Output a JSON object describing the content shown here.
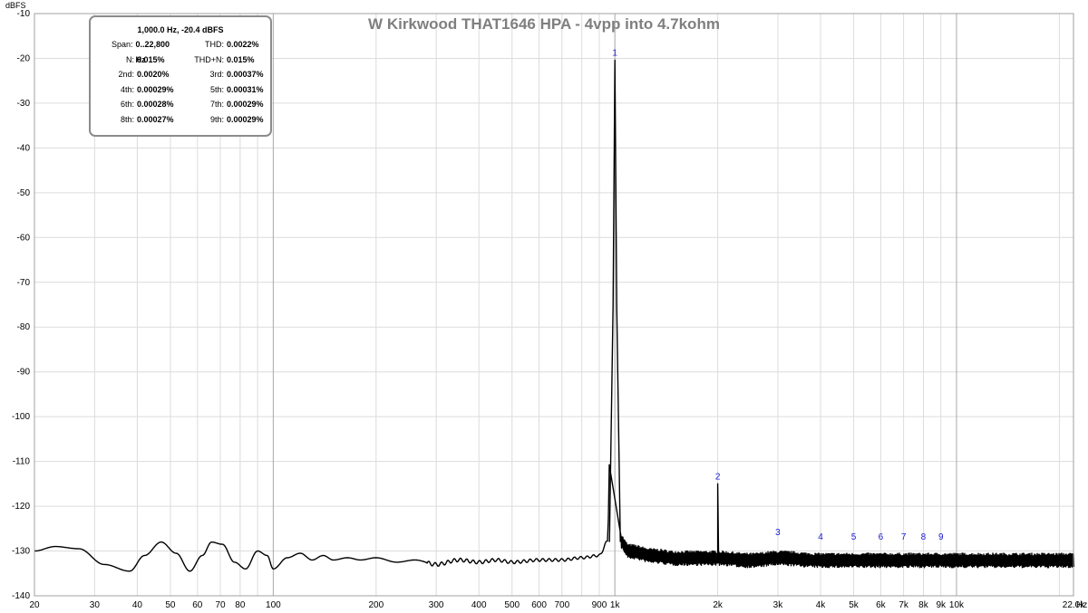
{
  "chart_data": {
    "type": "line",
    "title": "W Kirkwood THAT1646 HPA - 4vpp into 4.7kohm",
    "ylabel": "dBFS",
    "x_unit_label": "Hz",
    "x_scale": "log",
    "xlim": [
      20,
      22000
    ],
    "ylim": [
      -140,
      -10
    ],
    "grid": true,
    "x_ticks": [
      {
        "value": 20,
        "label": "20"
      },
      {
        "value": 30,
        "label": "30"
      },
      {
        "value": 40,
        "label": "40"
      },
      {
        "value": 50,
        "label": "50"
      },
      {
        "value": 60,
        "label": "60"
      },
      {
        "value": 70,
        "label": "70"
      },
      {
        "value": 80,
        "label": "80"
      },
      {
        "value": 100,
        "label": "100"
      },
      {
        "value": 200,
        "label": "200"
      },
      {
        "value": 300,
        "label": "300"
      },
      {
        "value": 400,
        "label": "400"
      },
      {
        "value": 500,
        "label": "500"
      },
      {
        "value": 600,
        "label": "600"
      },
      {
        "value": 700,
        "label": "700"
      },
      {
        "value": 900,
        "label": "900"
      },
      {
        "value": 1000,
        "label": "1k"
      },
      {
        "value": 2000,
        "label": "2k"
      },
      {
        "value": 3000,
        "label": "3k"
      },
      {
        "value": 4000,
        "label": "4k"
      },
      {
        "value": 5000,
        "label": "5k"
      },
      {
        "value": 6000,
        "label": "6k"
      },
      {
        "value": 7000,
        "label": "7k"
      },
      {
        "value": 8000,
        "label": "8k"
      },
      {
        "value": 9000,
        "label": "9k"
      },
      {
        "value": 10000,
        "label": "10k"
      },
      {
        "value": 22000,
        "label": "22.0k"
      }
    ],
    "y_ticks": [
      -10,
      -20,
      -30,
      -40,
      -50,
      -60,
      -70,
      -80,
      -90,
      -100,
      -110,
      -120,
      -130,
      -140
    ],
    "series": [
      {
        "color": "#000000",
        "x": [
          20,
          23,
          27,
          32,
          38,
          42,
          47,
          52,
          57,
          62,
          66,
          71,
          77,
          83,
          90,
          96,
          100,
          110,
          120,
          130,
          140,
          150,
          165,
          180,
          200,
          230,
          260,
          300,
          350,
          400,
          450,
          500,
          600,
          700,
          800,
          900,
          950,
          1000,
          1030,
          1100,
          1300,
          1500,
          1800,
          2000,
          2500,
          3000,
          4000,
          5000,
          7000,
          10000,
          15000,
          22000
        ],
        "y": [
          -130,
          -129,
          -129.5,
          -133,
          -134.5,
          -131,
          -128,
          -130.5,
          -134.5,
          -131,
          -128,
          -128.5,
          -132.5,
          -134,
          -130,
          -131,
          -134,
          -131.5,
          -130.5,
          -132,
          -131,
          -132,
          -131.5,
          -132,
          -131.5,
          -132.5,
          -132,
          -133,
          -132,
          -132.5,
          -132,
          -132.5,
          -132,
          -132,
          -131.5,
          -131,
          -128,
          -20.4,
          -128,
          -130.5,
          -131.5,
          -132,
          -132,
          -132,
          -132.5,
          -132,
          -132.5,
          -132.5,
          -132.5,
          -132.5,
          -132.5,
          -132.5
        ]
      }
    ],
    "harmonic_markers": [
      {
        "label": "1",
        "freq": 1000,
        "level": -20.4
      },
      {
        "label": "2",
        "freq": 2000,
        "level": -115
      },
      {
        "label": "3",
        "freq": 3000,
        "level": -127.5
      },
      {
        "label": "4",
        "freq": 4000,
        "level": -128.5
      },
      {
        "label": "5",
        "freq": 5000,
        "level": -128.5
      },
      {
        "label": "6",
        "freq": 6000,
        "level": -128.5
      },
      {
        "label": "7",
        "freq": 7000,
        "level": -128.5
      },
      {
        "label": "8",
        "freq": 8000,
        "level": -128.5
      },
      {
        "label": "9",
        "freq": 9000,
        "level": -128.5
      }
    ],
    "info_box": {
      "header": "1,000.0 Hz, -20.4 dBFS",
      "rows": [
        [
          {
            "label": "Span:",
            "value": "0..22,800 Hz"
          },
          {
            "label": "THD:",
            "value": "0.0022%"
          }
        ],
        [
          {
            "label": "N:",
            "value": "0.015%"
          },
          {
            "label": "THD+N:",
            "value": "0.015%"
          }
        ],
        [
          {
            "label": "2nd:",
            "value": "0.0020%"
          },
          {
            "label": "3rd:",
            "value": "0.00037%"
          }
        ],
        [
          {
            "label": "4th:",
            "value": "0.00029%"
          },
          {
            "label": "5th:",
            "value": "0.00031%"
          }
        ],
        [
          {
            "label": "6th:",
            "value": "0.00028%"
          },
          {
            "label": "7th:",
            "value": "0.00029%"
          }
        ],
        [
          {
            "label": "8th:",
            "value": "0.00027%"
          },
          {
            "label": "9th:",
            "value": "0.00029%"
          }
        ]
      ]
    }
  }
}
